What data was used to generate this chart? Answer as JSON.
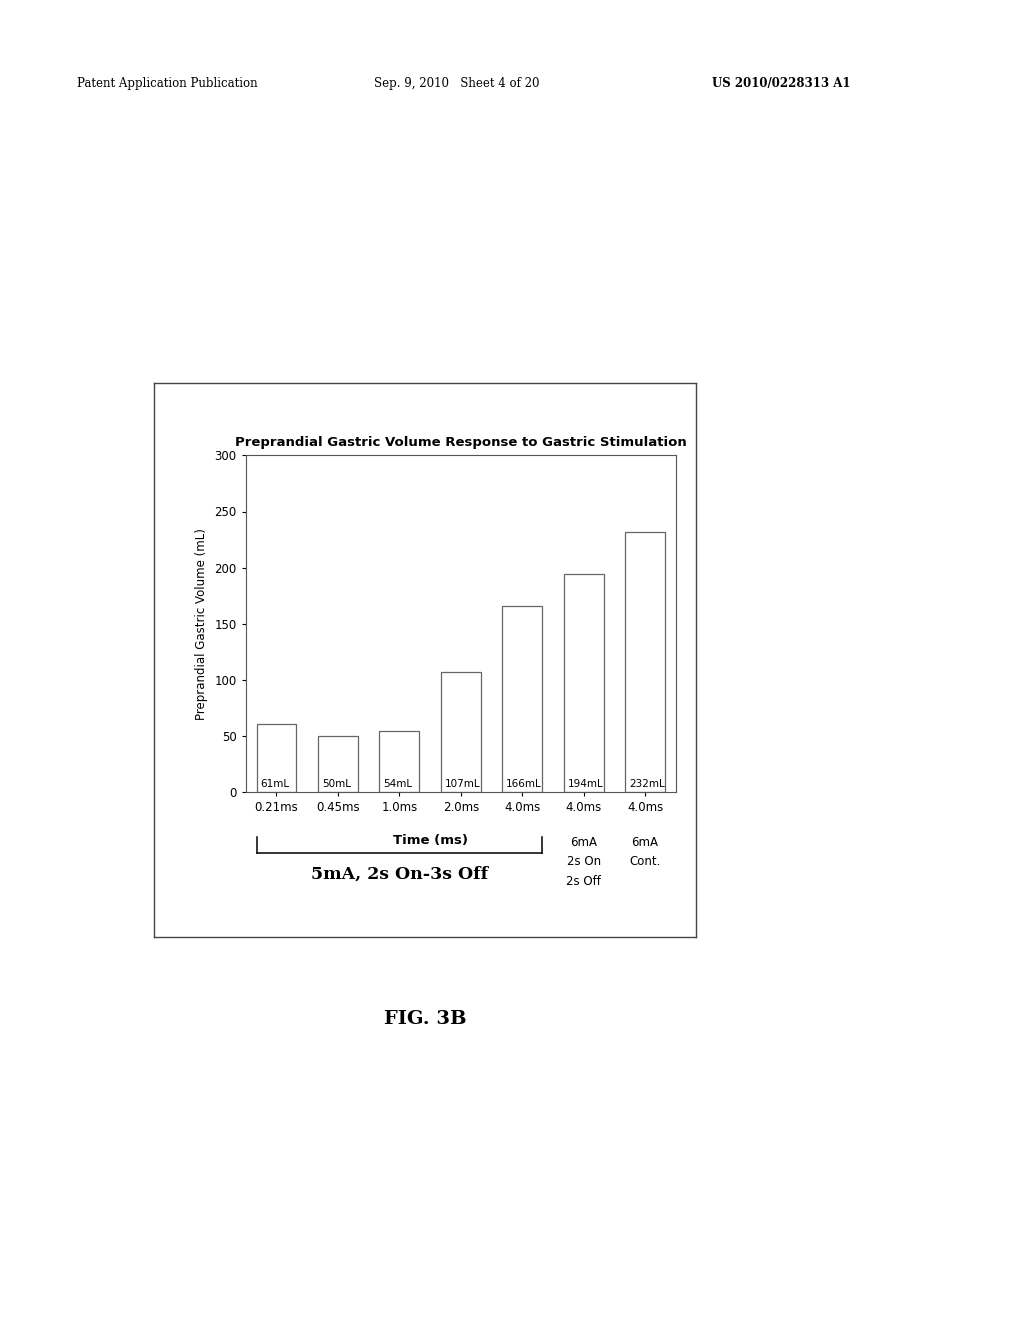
{
  "title": "Preprandial Gastric Volume Response to Gastric Stimulation",
  "xlabel": "Time (ms)",
  "ylabel": "Preprandial Gastric Volume (mL)",
  "categories": [
    "0.21ms",
    "0.45ms",
    "1.0ms",
    "2.0ms",
    "4.0ms",
    "4.0ms",
    "4.0ms"
  ],
  "values": [
    61,
    50,
    54,
    107,
    166,
    194,
    232
  ],
  "bar_labels": [
    "61mL",
    "50mL",
    "54mL",
    "107mL",
    "166mL",
    "194mL",
    "232mL"
  ],
  "ylim": [
    0,
    300
  ],
  "yticks": [
    0,
    50,
    100,
    150,
    200,
    250,
    300
  ],
  "bar_color": "#ffffff",
  "bar_edge_color": "#666666",
  "background_color": "#ffffff",
  "figure_bg": "#ffffff",
  "header_left": "Patent Application Publication",
  "header_center": "Sep. 9, 2010   Sheet 4 of 20",
  "header_right": "US 2010/0228313 A1",
  "fig_label": "FIG. 3B",
  "bracket_label": "5mA, 2s On-3s Off",
  "col5_line1": "6mA",
  "col5_line2": "2s On",
  "col5_line3": "2s Off",
  "col6_line1": "6mA",
  "col6_line2": "Cont."
}
